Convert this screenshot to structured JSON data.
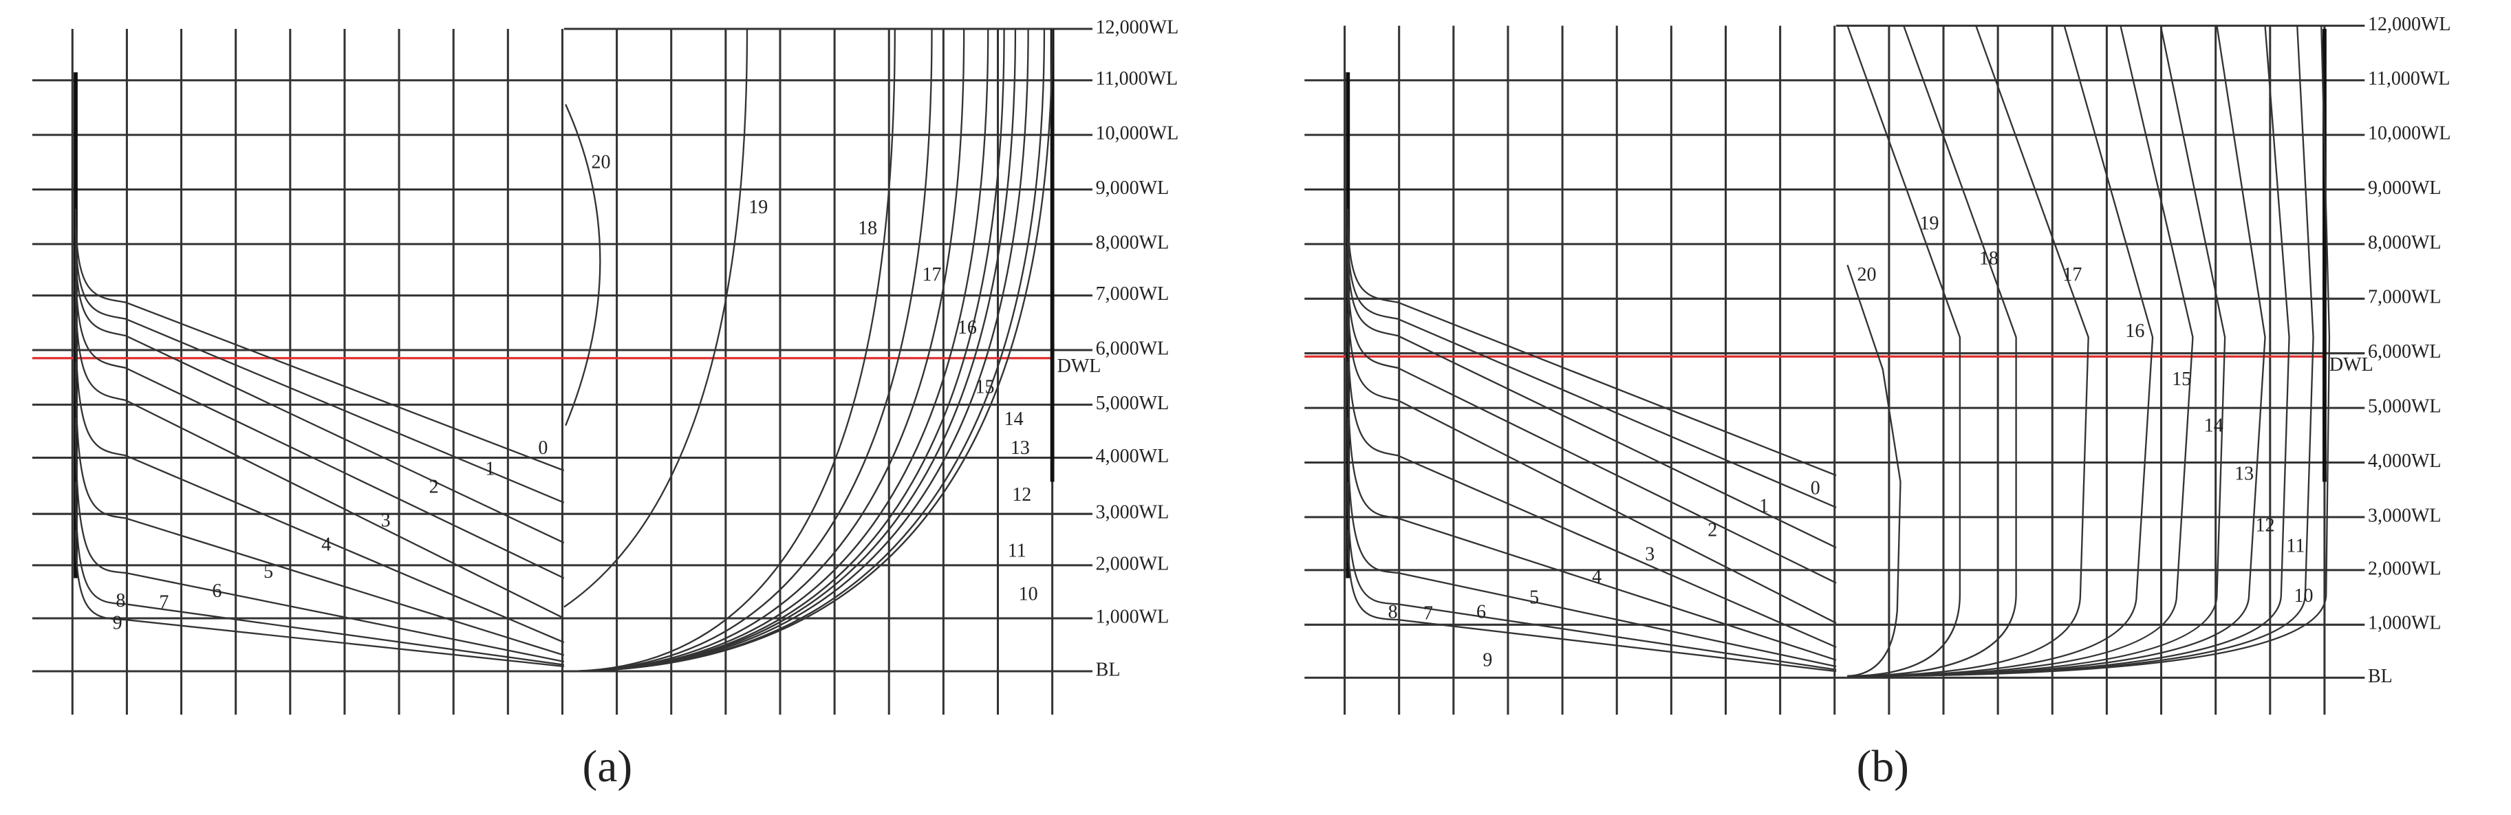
{
  "panel_a": {
    "caption": "(a)",
    "waterlines": [
      "12,000WL",
      "11,000WL",
      "10,000WL",
      "9,000WL",
      "8,000WL",
      "7,000WL",
      "6,000WL",
      "5,000WL",
      "4,000WL",
      "3,000WL",
      "2,000WL",
      "1,000WL",
      "BL"
    ],
    "dwl": "DWL",
    "stations": [
      "0",
      "1",
      "2",
      "3",
      "4",
      "5",
      "6",
      "7",
      "8",
      "9",
      "10",
      "11",
      "12",
      "13",
      "14",
      "15",
      "16",
      "17",
      "18",
      "19",
      "20"
    ]
  },
  "panel_b": {
    "caption": "(b)",
    "waterlines": [
      "12,000WL",
      "11,000WL",
      "10,000WL",
      "9,000WL",
      "8,000WL",
      "7,000WL",
      "6,000WL",
      "5,000WL",
      "4,000WL",
      "3,000WL",
      "2,000WL",
      "1,000WL",
      "BL"
    ],
    "dwl": "DWL",
    "stations": [
      "0",
      "1",
      "2",
      "3",
      "4",
      "5",
      "6",
      "7",
      "8",
      "9",
      "10",
      "11",
      "12",
      "13",
      "14",
      "15",
      "16",
      "17",
      "18",
      "19",
      "20"
    ]
  }
}
